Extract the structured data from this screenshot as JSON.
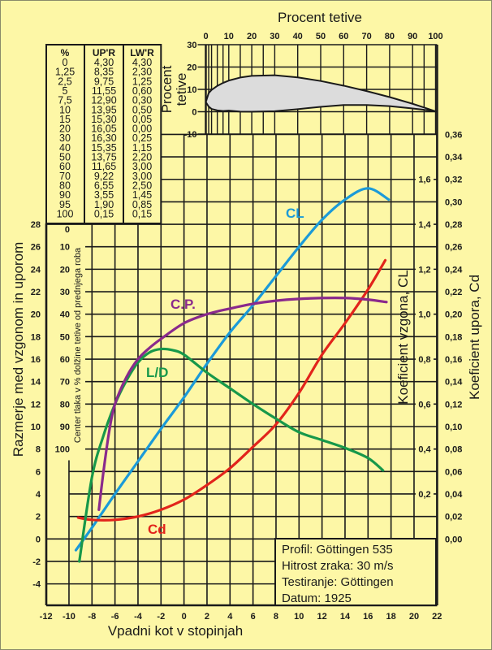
{
  "chart_data": {
    "type": "line",
    "title": "",
    "xlabel": "Vpadni kot v stopinjah",
    "xlim": [
      -12,
      22
    ],
    "x_ticks": [
      "-12",
      "-10",
      "-8",
      "-6",
      "-4",
      "-2",
      "0",
      "2",
      "4",
      "6",
      "8",
      "10",
      "12",
      "14",
      "16",
      "18",
      "20",
      "22"
    ],
    "left_axis": {
      "label": "Razmerje med vzgonom in uporom",
      "ylim": [
        -4,
        28
      ],
      "ticks": [
        "28",
        "26",
        "24",
        "22",
        "20",
        "18",
        "16",
        "14",
        "12",
        "10",
        "8",
        "6",
        "4",
        "2",
        "0",
        "-2",
        "-4"
      ]
    },
    "cp_axis": {
      "label": "Center tlaka v % dolžine tetive od prednjega roba",
      "range": [
        0,
        100
      ],
      "ticks": [
        "0",
        "10",
        "20",
        "30",
        "40",
        "50",
        "60",
        "70",
        "80",
        "90",
        "100"
      ]
    },
    "cl_axis": {
      "label": "Koeficient vzgona, CL",
      "ticks": [
        "0,2",
        "0,4",
        "0,6",
        "0,8",
        "1,0",
        "1,2",
        "1,4",
        "1,6"
      ]
    },
    "cd_axis": {
      "label": "Koeficient upora, Cd",
      "ylim": [
        0,
        0.36
      ],
      "ticks": [
        "0,00",
        "0,02",
        "0,04",
        "0,06",
        "0,08",
        "0,10",
        "0,12",
        "0,14",
        "0,16",
        "0,18",
        "0,20",
        "0,22",
        "0,24",
        "0,26",
        "0,28",
        "0,30",
        "0,32",
        "0,34",
        "0,36"
      ]
    },
    "series": [
      {
        "name": "CL",
        "axis": "cl",
        "color": "#1b9ad8",
        "x": [
          -9.4,
          -8,
          -6,
          -4,
          -2,
          0,
          2,
          4,
          6,
          8,
          10,
          12,
          14,
          16,
          17.8
        ],
        "y": [
          -0.05,
          0.05,
          0.2,
          0.345,
          0.49,
          0.63,
          0.78,
          0.92,
          1.04,
          1.17,
          1.3,
          1.42,
          1.51,
          1.56,
          1.51
        ]
      },
      {
        "name": "Cd",
        "axis": "cd",
        "color": "#e2241b",
        "x": [
          -9.2,
          -8,
          -6,
          -4,
          -2,
          0,
          2,
          4,
          6,
          8,
          10,
          12,
          14,
          16,
          17.5
        ],
        "y": [
          0.019,
          0.017,
          0.017,
          0.02,
          0.026,
          0.035,
          0.048,
          0.063,
          0.082,
          0.102,
          0.13,
          0.164,
          0.192,
          0.222,
          0.248
        ]
      },
      {
        "name": "L/D",
        "axis": "ratio",
        "color": "#17984a",
        "x": [
          -9.1,
          -8,
          -7,
          -6,
          -5,
          -4,
          -3,
          -2,
          -1,
          0,
          2,
          4,
          6,
          8,
          10,
          12,
          14,
          16,
          17.3
        ],
        "y": [
          -2.0,
          5.5,
          9.2,
          12,
          14.1,
          15.7,
          16.6,
          16.9,
          16.8,
          16.4,
          14.8,
          13.4,
          12,
          10.7,
          9.5,
          8.8,
          8.1,
          7.2,
          6.1
        ]
      },
      {
        "name": "C.P.",
        "axis": "cp",
        "color": "#8a2a8c",
        "x": [
          -7.4,
          -7,
          -6.5,
          -6,
          -5,
          -4,
          -3,
          -2,
          0,
          2,
          4,
          6,
          8,
          10,
          12,
          14,
          16,
          17.6
        ],
        "y": [
          127,
          110,
          92,
          80,
          68,
          60,
          55,
          51,
          44,
          40,
          37.5,
          35.4,
          34,
          33.2,
          32.8,
          32.8,
          33.5,
          34.6
        ]
      }
    ],
    "airfoil": {
      "title": "Procent tetive",
      "ylabel_line1": "Procent",
      "ylabel_line2": "tetive",
      "x_ticks": [
        "0",
        "10",
        "20",
        "30",
        "40",
        "50",
        "60",
        "70",
        "80",
        "90",
        "100"
      ],
      "y_ticks": [
        "30",
        "20",
        "10",
        "0",
        "-10"
      ],
      "table_headers": [
        "%",
        "UP'R",
        "LW'R"
      ],
      "stations": [
        "0",
        "1,25",
        "2,5",
        "5",
        "7,5",
        "10",
        "15",
        "20",
        "30",
        "40",
        "50",
        "60",
        "70",
        "80",
        "90",
        "95",
        "100"
      ],
      "upper": [
        "4,30",
        "8,35",
        "9,75",
        "11,55",
        "12,90",
        "13,95",
        "15,30",
        "16,05",
        "16,30",
        "15,35",
        "13,75",
        "11,65",
        "9,22",
        "6,55",
        "3,55",
        "1,90",
        "0,15"
      ],
      "lower": [
        "4,30",
        "2,30",
        "1,25",
        "0,60",
        "0,30",
        "0,50",
        "0,05",
        "0,00",
        "0,25",
        "1,15",
        "2,20",
        "3,00",
        "3,00",
        "2,50",
        "1,45",
        "0,85",
        "0,15"
      ]
    },
    "info": [
      "Profil: Göttingen 535",
      "Hitrost zraka: 30 m/s",
      "Testiranje: Göttingen",
      "Datum: 1925"
    ]
  }
}
